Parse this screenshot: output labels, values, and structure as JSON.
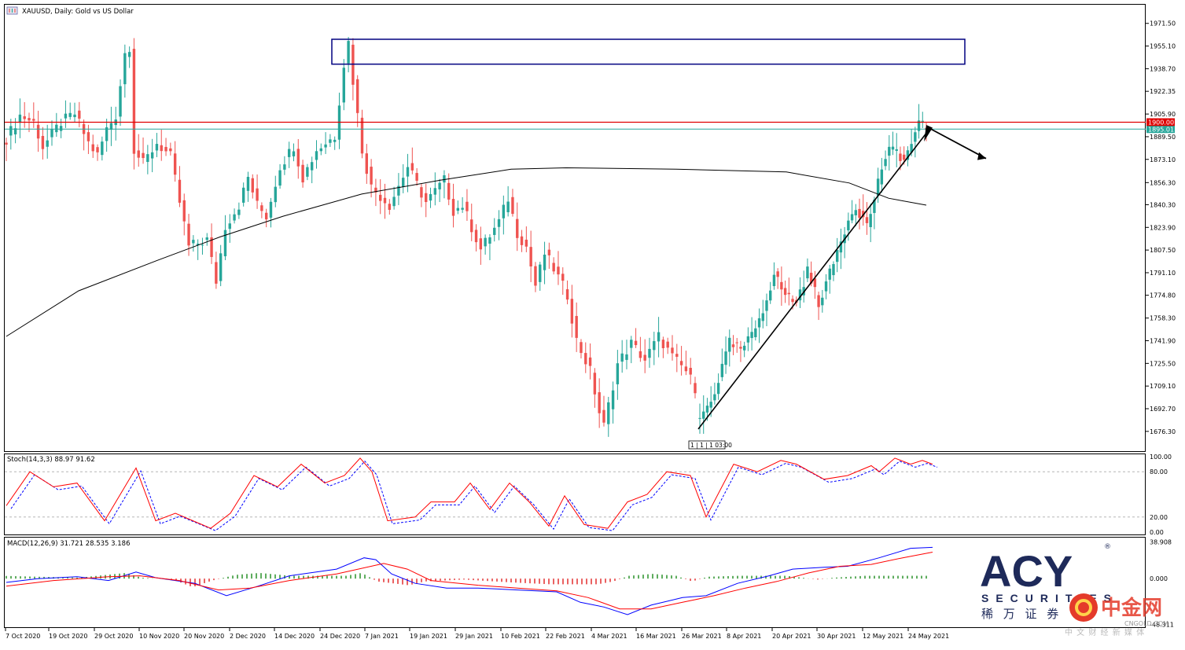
{
  "window": {
    "title": "XAUUSD, Daily:  Gold vs US Dollar"
  },
  "colors": {
    "up": "#26a69a",
    "down": "#ef5350",
    "resistance": "#e00000",
    "current": "#26a69a",
    "box": "#000080",
    "ma": "#000000",
    "stoch_main": "#ff0000",
    "stoch_signal": "#0000ff",
    "macd_main": "#0000ff",
    "macd_signal": "#ff0000"
  },
  "chart_data": [
    {
      "type": "candlestick",
      "title": "XAUUSD, Daily:  Gold vs US Dollar",
      "ylim": [
        1662,
        1985
      ],
      "y_ticks": [
        "1971.50",
        "1955.10",
        "1938.70",
        "1922.35",
        "1905.90",
        "1889.50",
        "1873.10",
        "1856.30",
        "1840.30",
        "1823.90",
        "1807.50",
        "1791.10",
        "1774.80",
        "1758.30",
        "1741.90",
        "1725.50",
        "1709.10",
        "1692.70",
        "1676.30"
      ],
      "x_ticks": [
        "7 Oct 2020",
        "19 Oct 2020",
        "29 Oct 2020",
        "10 Nov 2020",
        "20 Nov 2020",
        "2 Dec 2020",
        "14 Dec 2020",
        "24 Dec 2020",
        "7 Jan 2021",
        "19 Jan 2021",
        "29 Jan 2021",
        "10 Feb 2021",
        "22 Feb 2021",
        "4 Mar 2021",
        "16 Mar 2021",
        "26 Mar 2021",
        "8 Apr 2021",
        "20 Apr 2021",
        "30 Apr 2021",
        "12 May 2021",
        "24 May 2021"
      ],
      "price_labels": {
        "resistance": "1900.00",
        "current": "1895.01"
      },
      "resistance_level": 1900.0,
      "current_price": 1895.01,
      "candles": [],
      "moving_average": [],
      "annotations": [
        {
          "type": "zone",
          "price_top": 1960,
          "price_bottom": 1942
        },
        {
          "type": "trendline",
          "from_price": 1678,
          "to_price": 1895
        },
        {
          "type": "arrow",
          "from_price": 1895,
          "to_price": 1876
        },
        {
          "type": "time_label",
          "text": "1 | 1 | 1 03:00"
        }
      ]
    },
    {
      "type": "line",
      "title": "Stoch(14,3,3) 88.97 91.62",
      "ylim": [
        0,
        100
      ],
      "y_ticks": [
        "100.00",
        "80.00",
        "20.00",
        "0.00"
      ],
      "levels": [
        80,
        20
      ],
      "series": [
        {
          "name": "%K",
          "values": []
        },
        {
          "name": "%D",
          "values": []
        }
      ]
    },
    {
      "type": "bar",
      "title": "MACD(12,26,9) 31.721 28.535 3.186",
      "ylim": [
        -48.0,
        40.0
      ],
      "y_ticks": [
        "38.908",
        "0.000",
        "-48.311"
      ],
      "series": [
        {
          "name": "histogram",
          "values": []
        },
        {
          "name": "main",
          "values": []
        },
        {
          "name": "signal",
          "values": []
        }
      ]
    }
  ],
  "logo": {
    "brand": "ACY",
    "sub": "SECURITIES",
    "cn": "稀 万 证 券",
    "watermark": "中金网",
    "watermark_sub": "CNGOLD.COM",
    "watermark_cn": "中 文 财 经 新 媒 体"
  }
}
